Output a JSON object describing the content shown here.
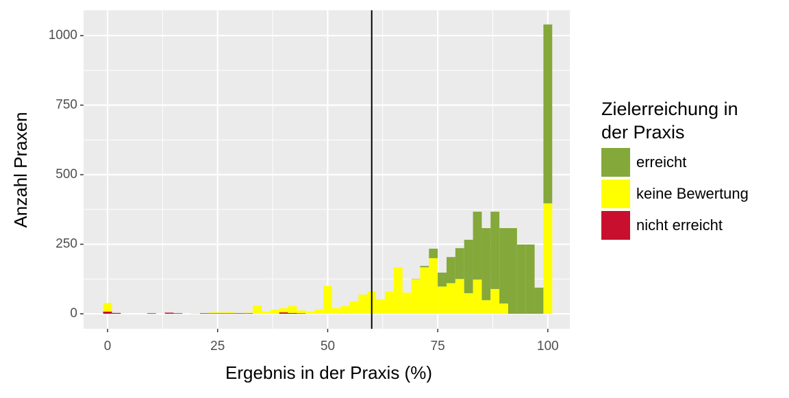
{
  "chart_data": {
    "type": "histogram",
    "x_label": "Ergebnis in der Praxis (%)",
    "y_label": "Anzahl Praxen",
    "legend_title": "Zielerreichung in der Praxis",
    "bins": [
      -1,
      1,
      3,
      5,
      7,
      9,
      11,
      13,
      15,
      17,
      19,
      21,
      23,
      25,
      27,
      29,
      31,
      33,
      35,
      37,
      39,
      41,
      43,
      45,
      47,
      49,
      51,
      53,
      55,
      57,
      59,
      61,
      63,
      65,
      67,
      69,
      71,
      73,
      75,
      77,
      79,
      81,
      83,
      85,
      87,
      89,
      91,
      93,
      95,
      97,
      99,
      101
    ],
    "series": [
      {
        "name": "erreicht",
        "color": "#84a83a",
        "values": [
          0,
          0,
          0,
          0,
          0,
          0,
          0,
          0,
          0,
          0,
          0,
          0,
          0,
          0,
          0,
          0,
          0,
          0,
          0,
          0,
          0,
          0,
          0,
          0,
          0,
          0,
          0,
          0,
          0,
          0,
          0,
          0,
          0,
          0,
          0,
          1,
          5,
          34,
          50,
          94,
          111,
          192,
          244,
          259,
          278,
          271,
          308,
          249,
          249,
          94,
          643
        ]
      },
      {
        "name": "keine Bewertung",
        "color": "#ffff00",
        "values": [
          31,
          0,
          0,
          0,
          0,
          0,
          0,
          0,
          0,
          0,
          2,
          0,
          3,
          3,
          3,
          0,
          2,
          30,
          8,
          15,
          15,
          25,
          10,
          8,
          15,
          100,
          20,
          28,
          44,
          69,
          80,
          52,
          80,
          167,
          76,
          125,
          167,
          200,
          98,
          110,
          125,
          74,
          123,
          49,
          89,
          37,
          0,
          0,
          0,
          0,
          397
        ]
      },
      {
        "name": "nicht erreicht",
        "color": "#c8102e",
        "values": [
          8,
          3,
          0,
          0,
          0,
          2,
          0,
          4,
          2,
          0,
          0,
          2,
          2,
          2,
          2,
          2,
          2,
          0,
          0,
          0,
          5,
          3,
          2,
          0,
          0,
          0,
          0,
          0,
          0,
          0,
          0,
          0,
          0,
          0,
          0,
          0,
          0,
          0,
          0,
          0,
          0,
          0,
          0,
          0,
          0,
          0,
          0,
          0,
          0,
          0,
          0
        ]
      }
    ],
    "vline": 60,
    "xlim": [
      -5.45,
      105
    ],
    "xticks": [
      0,
      25,
      50,
      75,
      100
    ],
    "ylim": [
      -54,
      1091
    ],
    "yticks": [
      0,
      250,
      500,
      750,
      1000
    ],
    "grid": true
  }
}
